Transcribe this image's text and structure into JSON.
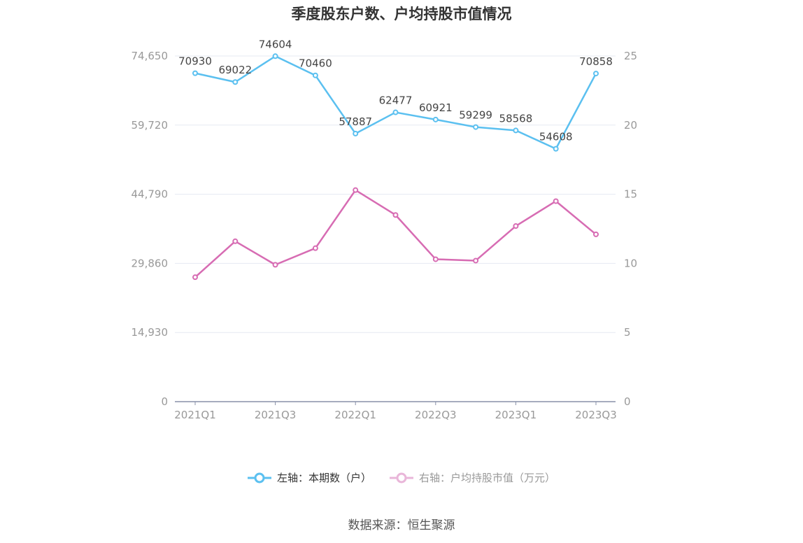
{
  "title": "季度股东户数、户均持股市值情况",
  "legend": {
    "left": "左轴：本期数（户）",
    "right": "右轴：户均持股市值（万元）"
  },
  "source": "数据来源：恒生聚源",
  "colors": {
    "left_series": "#5bc0f0",
    "right_series": "#d76cb3",
    "grid": "#e6e9f2",
    "axis": "#8890a8"
  },
  "chart_data": {
    "type": "line",
    "title": "季度股东户数、户均持股市值情况",
    "categories": [
      "2021Q1",
      "2021Q2",
      "2021Q3",
      "2021Q4",
      "2022Q1",
      "2022Q2",
      "2022Q3",
      "2022Q4",
      "2023Q1",
      "2023Q2",
      "2023Q3"
    ],
    "x_tick_labels": [
      "2021Q1",
      "2021Q3",
      "2022Q1",
      "2022Q3",
      "2023Q1",
      "2023Q3"
    ],
    "y_left": {
      "ticks": [
        "0",
        "14,930",
        "29,860",
        "44,790",
        "59,720",
        "74,650"
      ],
      "ylim": [
        0,
        74650
      ]
    },
    "y_right": {
      "ticks": [
        "0",
        "5",
        "10",
        "15",
        "20",
        "25"
      ],
      "ylim": [
        0,
        25
      ]
    },
    "series": [
      {
        "name": "左轴：本期数（户）",
        "axis": "left",
        "values": [
          70930,
          69022,
          74604,
          70460,
          57887,
          62477,
          60921,
          59299,
          58568,
          54608,
          70858
        ],
        "labels": [
          "70930",
          "69022",
          "74604",
          "70460",
          "57887",
          "62477",
          "60921",
          "59299",
          "58568",
          "54608",
          "70858"
        ]
      },
      {
        "name": "右轴：户均持股市值（万元）",
        "axis": "right",
        "values": [
          9.0,
          11.6,
          9.9,
          11.1,
          15.3,
          13.5,
          10.3,
          10.2,
          12.7,
          14.5,
          12.1
        ]
      }
    ],
    "grid": true,
    "legend_position": "bottom"
  }
}
